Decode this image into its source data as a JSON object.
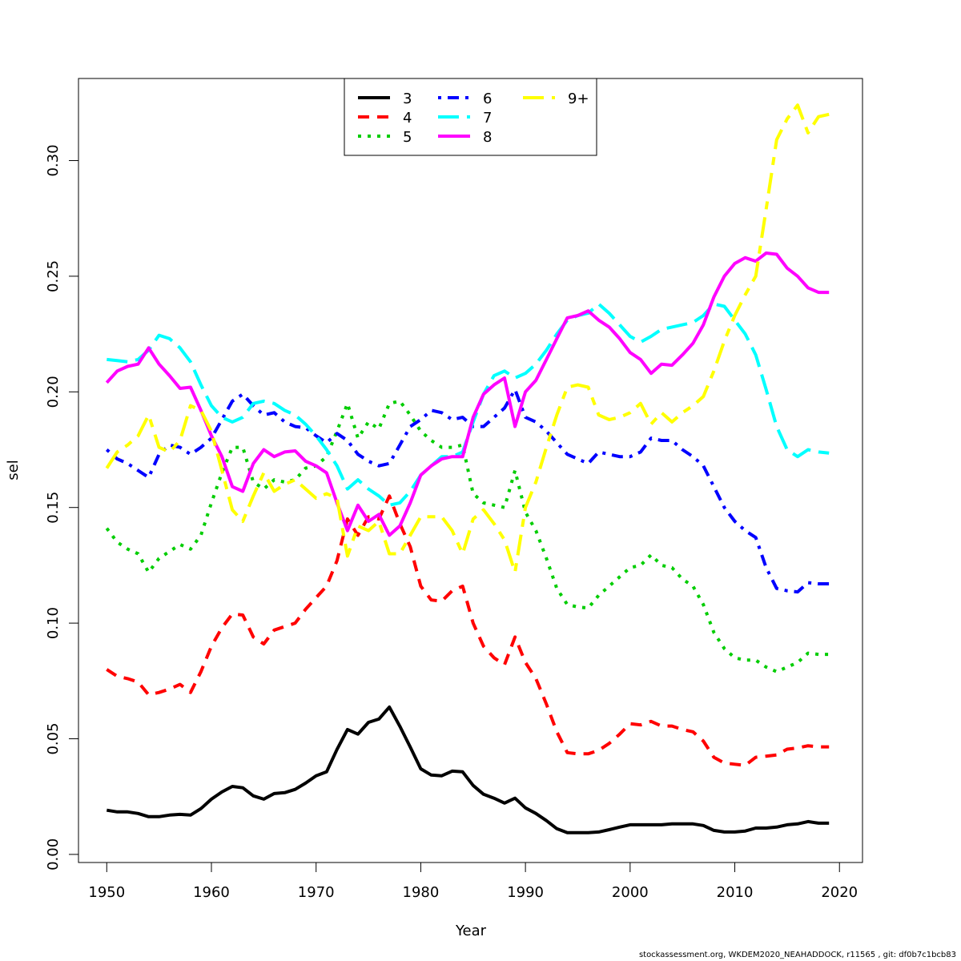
{
  "chart_data": {
    "type": "line",
    "title": "",
    "xlabel": "Year",
    "ylabel": "sel",
    "xlim": [
      1947.3,
      2022.2
    ],
    "ylim": [
      -0.0035,
      0.3355
    ],
    "x_ticks": [
      1950,
      1960,
      1970,
      1980,
      1990,
      2000,
      2010,
      2020
    ],
    "x_tick_labels": [
      "1950",
      "1960",
      "1970",
      "1980",
      "1990",
      "2000",
      "2010",
      "2020"
    ],
    "y_ticks": [
      0.0,
      0.05,
      0.1,
      0.15,
      0.2,
      0.25,
      0.3
    ],
    "y_tick_labels": [
      "0.00",
      "0.05",
      "0.10",
      "0.15",
      "0.20",
      "0.25",
      "0.30"
    ],
    "grid": false,
    "legend_position": "top-center",
    "x": [
      1950,
      1951,
      1952,
      1953,
      1954,
      1955,
      1956,
      1957,
      1958,
      1959,
      1960,
      1961,
      1962,
      1963,
      1964,
      1965,
      1966,
      1967,
      1968,
      1969,
      1970,
      1971,
      1972,
      1973,
      1974,
      1975,
      1976,
      1977,
      1978,
      1979,
      1980,
      1981,
      1982,
      1983,
      1984,
      1985,
      1986,
      1987,
      1988,
      1989,
      1990,
      1991,
      1992,
      1993,
      1994,
      1995,
      1996,
      1997,
      1998,
      1999,
      2000,
      2001,
      2002,
      2003,
      2004,
      2005,
      2006,
      2007,
      2008,
      2009,
      2010,
      2011,
      2012,
      2013,
      2014,
      2015,
      2016,
      2017,
      2018,
      2019
    ],
    "series": [
      {
        "name": "3",
        "color": "#000000",
        "dash": "solid",
        "values": [
          0.0191,
          0.0184,
          0.0184,
          0.0177,
          0.0163,
          0.0163,
          0.017,
          0.0173,
          0.017,
          0.0198,
          0.0239,
          0.027,
          0.0294,
          0.0288,
          0.0253,
          0.0239,
          0.0263,
          0.0267,
          0.0281,
          0.0308,
          0.034,
          0.0357,
          0.0454,
          0.054,
          0.052,
          0.0571,
          0.0585,
          0.0637,
          0.0554,
          0.0464,
          0.037,
          0.0343,
          0.034,
          0.036,
          0.0357,
          0.0298,
          0.026,
          0.0243,
          0.0222,
          0.0243,
          0.0201,
          0.0177,
          0.0146,
          0.0111,
          0.0094,
          0.0094,
          0.0094,
          0.0097,
          0.0107,
          0.0118,
          0.0128,
          0.0128,
          0.0128,
          0.0128,
          0.0132,
          0.0132,
          0.0132,
          0.0125,
          0.0104,
          0.0097,
          0.0097,
          0.0101,
          0.0114,
          0.0114,
          0.0118,
          0.0128,
          0.0132,
          0.0142,
          0.0135,
          0.0135
        ]
      },
      {
        "name": "4",
        "color": "#ff0000",
        "dash": "dashed",
        "values": [
          0.08,
          0.077,
          0.076,
          0.0745,
          0.069,
          0.07,
          0.0715,
          0.0735,
          0.07,
          0.079,
          0.09,
          0.098,
          0.104,
          0.1035,
          0.094,
          0.091,
          0.097,
          0.0985,
          0.1,
          0.106,
          0.111,
          0.116,
          0.127,
          0.145,
          0.138,
          0.146,
          0.145,
          0.155,
          0.143,
          0.133,
          0.116,
          0.11,
          0.1095,
          0.114,
          0.116,
          0.1,
          0.09,
          0.085,
          0.082,
          0.094,
          0.083,
          0.076,
          0.065,
          0.053,
          0.044,
          0.0435,
          0.0435,
          0.045,
          0.048,
          0.052,
          0.0565,
          0.056,
          0.0575,
          0.0555,
          0.0555,
          0.054,
          0.053,
          0.049,
          0.042,
          0.0395,
          0.039,
          0.0385,
          0.042,
          0.0425,
          0.043,
          0.0455,
          0.046,
          0.047,
          0.0465,
          0.0465
        ]
      },
      {
        "name": "5",
        "color": "#00cd00",
        "dash": "dotted",
        "values": [
          0.141,
          0.135,
          0.132,
          0.13,
          0.122,
          0.128,
          0.131,
          0.134,
          0.132,
          0.138,
          0.152,
          0.165,
          0.176,
          0.176,
          0.161,
          0.158,
          0.162,
          0.161,
          0.162,
          0.167,
          0.168,
          0.172,
          0.183,
          0.195,
          0.18,
          0.187,
          0.184,
          0.195,
          0.196,
          0.19,
          0.183,
          0.179,
          0.176,
          0.176,
          0.177,
          0.156,
          0.152,
          0.151,
          0.15,
          0.166,
          0.148,
          0.14,
          0.128,
          0.115,
          0.108,
          0.107,
          0.1065,
          0.112,
          0.116,
          0.12,
          0.124,
          0.125,
          0.1295,
          0.125,
          0.124,
          0.119,
          0.116,
          0.108,
          0.096,
          0.089,
          0.085,
          0.084,
          0.084,
          0.081,
          0.079,
          0.081,
          0.083,
          0.087,
          0.0865,
          0.0865
        ]
      },
      {
        "name": "6",
        "color": "#0000ff",
        "dash": "dashdot",
        "values": [
          0.175,
          0.171,
          0.169,
          0.166,
          0.163,
          0.173,
          0.177,
          0.176,
          0.173,
          0.176,
          0.18,
          0.188,
          0.196,
          0.199,
          0.194,
          0.19,
          0.191,
          0.187,
          0.185,
          0.1845,
          0.181,
          0.178,
          0.182,
          0.179,
          0.173,
          0.17,
          0.168,
          0.169,
          0.177,
          0.185,
          0.188,
          0.192,
          0.191,
          0.188,
          0.189,
          0.185,
          0.185,
          0.189,
          0.193,
          0.201,
          0.189,
          0.187,
          0.183,
          0.178,
          0.173,
          0.171,
          0.169,
          0.174,
          0.173,
          0.172,
          0.172,
          0.174,
          0.18,
          0.179,
          0.179,
          0.175,
          0.172,
          0.168,
          0.159,
          0.15,
          0.144,
          0.14,
          0.137,
          0.124,
          0.115,
          0.114,
          0.1135,
          0.1175,
          0.117,
          0.117
        ]
      },
      {
        "name": "7",
        "color": "#00ffff",
        "dash": "longdash",
        "values": [
          0.214,
          0.2135,
          0.213,
          0.214,
          0.218,
          0.2245,
          0.223,
          0.219,
          0.213,
          0.203,
          0.194,
          0.189,
          0.187,
          0.189,
          0.195,
          0.196,
          0.195,
          0.192,
          0.19,
          0.186,
          0.181,
          0.175,
          0.168,
          0.158,
          0.162,
          0.158,
          0.155,
          0.151,
          0.152,
          0.157,
          0.164,
          0.168,
          0.172,
          0.172,
          0.174,
          0.187,
          0.199,
          0.207,
          0.209,
          0.206,
          0.208,
          0.212,
          0.218,
          0.225,
          0.231,
          0.233,
          0.234,
          0.238,
          0.234,
          0.229,
          0.224,
          0.2215,
          0.224,
          0.227,
          0.228,
          0.229,
          0.23,
          0.233,
          0.238,
          0.237,
          0.231,
          0.225,
          0.216,
          0.201,
          0.185,
          0.175,
          0.172,
          0.175,
          0.174,
          0.1735
        ]
      },
      {
        "name": "8",
        "color": "#ff00ff",
        "dash": "solid",
        "values": [
          0.204,
          0.209,
          0.211,
          0.212,
          0.219,
          0.212,
          0.207,
          0.2015,
          0.202,
          0.192,
          0.181,
          0.172,
          0.159,
          0.157,
          0.169,
          0.175,
          0.172,
          0.174,
          0.1745,
          0.17,
          0.168,
          0.165,
          0.152,
          0.14,
          0.151,
          0.144,
          0.147,
          0.138,
          0.142,
          0.152,
          0.164,
          0.168,
          0.171,
          0.172,
          0.172,
          0.189,
          0.199,
          0.203,
          0.206,
          0.185,
          0.2,
          0.205,
          0.214,
          0.223,
          0.232,
          0.233,
          0.235,
          0.231,
          0.228,
          0.223,
          0.217,
          0.214,
          0.208,
          0.212,
          0.2115,
          0.216,
          0.221,
          0.229,
          0.241,
          0.25,
          0.2555,
          0.258,
          0.2565,
          0.26,
          0.2595,
          0.2535,
          0.25,
          0.245,
          0.243,
          0.243
        ]
      },
      {
        "name": "9+",
        "color": "#ffff00",
        "dash": "longdash2",
        "values": [
          0.167,
          0.174,
          0.177,
          0.181,
          0.19,
          0.176,
          0.174,
          0.179,
          0.194,
          0.192,
          0.183,
          0.166,
          0.149,
          0.144,
          0.155,
          0.165,
          0.157,
          0.16,
          0.162,
          0.158,
          0.154,
          0.156,
          0.154,
          0.129,
          0.142,
          0.14,
          0.144,
          0.13,
          0.13,
          0.138,
          0.146,
          0.146,
          0.146,
          0.14,
          0.13,
          0.145,
          0.149,
          0.143,
          0.136,
          0.122,
          0.15,
          0.161,
          0.176,
          0.19,
          0.202,
          0.203,
          0.202,
          0.19,
          0.188,
          0.189,
          0.191,
          0.195,
          0.186,
          0.191,
          0.187,
          0.191,
          0.194,
          0.198,
          0.209,
          0.222,
          0.233,
          0.242,
          0.25,
          0.279,
          0.309,
          0.318,
          0.324,
          0.312,
          0.319,
          0.32
        ]
      }
    ]
  },
  "footer": {
    "text": "stockassessment.org, WKDEM2020_NEAHADDOCK, r11565 , git: df0b7c1bcb83"
  }
}
